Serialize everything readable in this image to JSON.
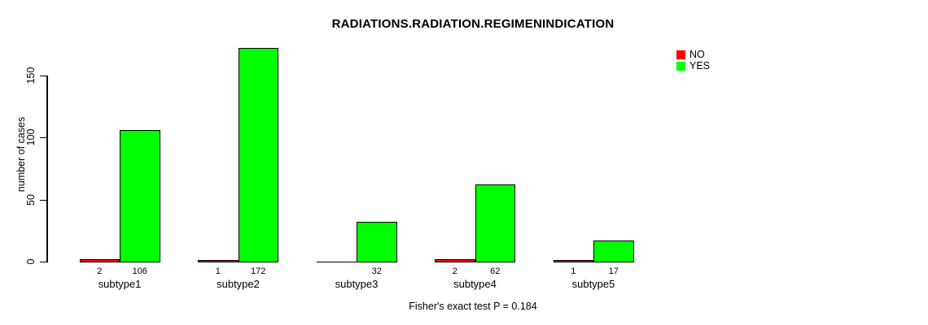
{
  "chart_data": {
    "type": "bar",
    "title": "RADIATIONS.RADIATION.REGIMENINDICATION",
    "xlabel": "",
    "ylabel": "number of cases",
    "annotation": "Fisher's exact test P = 0.184",
    "categories": [
      "subtype1",
      "subtype2",
      "subtype3",
      "subtype4",
      "subtype5"
    ],
    "series": [
      {
        "name": "NO",
        "color": "#FF0000",
        "values": [
          2,
          1,
          0,
          2,
          1
        ]
      },
      {
        "name": "YES",
        "color": "#00FF00",
        "values": [
          106,
          172,
          32,
          62,
          17
        ]
      }
    ],
    "bar_value_labels": [
      [
        "2",
        "106"
      ],
      [
        "1",
        "172"
      ],
      [
        "",
        "32"
      ],
      [
        "2",
        "62"
      ],
      [
        "1",
        "17"
      ]
    ],
    "yticks": [
      0,
      50,
      100,
      150
    ],
    "ylim": [
      0,
      172
    ],
    "grid": false,
    "legend_position": "top-right",
    "background": "#FFFFFF",
    "axis_color": "#000000"
  }
}
